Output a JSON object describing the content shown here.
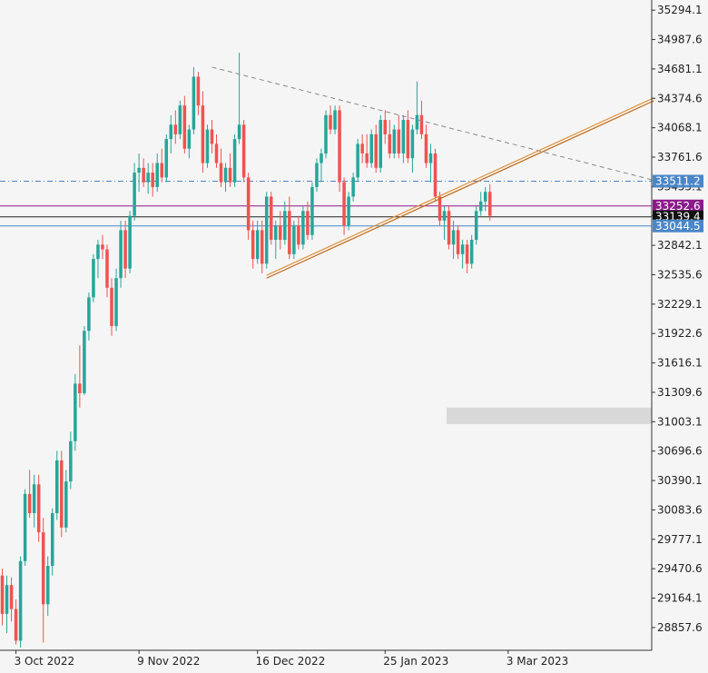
{
  "chart_data": {
    "type": "candlestick",
    "y_ticks": [
      35294.1,
      34987.6,
      34681.1,
      34374.6,
      34068.1,
      33761.6,
      33455.1,
      33148.6,
      32842.1,
      32535.6,
      32229.1,
      31922.6,
      31616.1,
      31309.6,
      31003.1,
      30696.6,
      30390.1,
      30083.6,
      29777.1,
      29470.6,
      29164.1,
      28857.6
    ],
    "x_ticks": [
      {
        "label": "3 Oct 2022",
        "bar": 3
      },
      {
        "label": "9 Nov 2022",
        "bar": 30
      },
      {
        "label": "16 Dec 2022",
        "bar": 56
      },
      {
        "label": "25 Jan 2023",
        "bar": 84
      },
      {
        "label": "3 Mar 2023",
        "bar": 111
      }
    ],
    "ylim": [
      28620,
      35400
    ],
    "bar_count": 143,
    "colors": {
      "up": "#26a69a",
      "down": "#ef5350",
      "background": "#f5f5f5"
    },
    "candles": [
      [
        29400,
        29470,
        28880,
        29000
      ],
      [
        29000,
        29400,
        28800,
        29300
      ],
      [
        29300,
        29380,
        28920,
        29050
      ],
      [
        29050,
        29150,
        28680,
        28720
      ],
      [
        28720,
        29600,
        28650,
        29550
      ],
      [
        29550,
        30300,
        29500,
        30250
      ],
      [
        30250,
        30500,
        30000,
        30050
      ],
      [
        30050,
        30450,
        29900,
        30350
      ],
      [
        30350,
        30450,
        29750,
        29850
      ],
      [
        29850,
        30000,
        28700,
        29100
      ],
      [
        29100,
        29600,
        28980,
        29500
      ],
      [
        29500,
        30100,
        29400,
        30050
      ],
      [
        30050,
        30700,
        29980,
        30600
      ],
      [
        30600,
        30700,
        29800,
        29900
      ],
      [
        29900,
        30500,
        29850,
        30380
      ],
      [
        30380,
        30900,
        30300,
        30800
      ],
      [
        30800,
        31500,
        30700,
        31400
      ],
      [
        31400,
        31800,
        31150,
        31300
      ],
      [
        31300,
        32000,
        31280,
        31950
      ],
      [
        31950,
        32350,
        31850,
        32300
      ],
      [
        32300,
        32750,
        32250,
        32700
      ],
      [
        32700,
        32900,
        32500,
        32850
      ],
      [
        32850,
        32950,
        32700,
        32800
      ],
      [
        32800,
        32850,
        32300,
        32400
      ],
      [
        32400,
        32500,
        31900,
        32000
      ],
      [
        32000,
        32600,
        31950,
        32500
      ],
      [
        32500,
        33100,
        32400,
        33000
      ],
      [
        33000,
        33100,
        32500,
        32600
      ],
      [
        32600,
        33200,
        32550,
        33150
      ],
      [
        33150,
        33700,
        33100,
        33600
      ],
      [
        33600,
        33800,
        33400,
        33650
      ],
      [
        33650,
        33750,
        33450,
        33500
      ],
      [
        33500,
        33700,
        33380,
        33600
      ],
      [
        33600,
        33700,
        33350,
        33450
      ],
      [
        33450,
        33800,
        33400,
        33700
      ],
      [
        33700,
        33850,
        33500,
        33550
      ],
      [
        33550,
        34000,
        33500,
        33950
      ],
      [
        33950,
        34200,
        33800,
        34100
      ],
      [
        34100,
        34250,
        33900,
        34000
      ],
      [
        34000,
        34350,
        33950,
        34300
      ],
      [
        34300,
        34400,
        33800,
        33850
      ],
      [
        33850,
        34100,
        33750,
        34050
      ],
      [
        34050,
        34700,
        34000,
        34600
      ],
      [
        34600,
        34650,
        34200,
        34300
      ],
      [
        34300,
        34450,
        33600,
        33700
      ],
      [
        33700,
        34100,
        33650,
        34050
      ],
      [
        34050,
        34150,
        33800,
        33900
      ],
      [
        33900,
        34000,
        33650,
        33700
      ],
      [
        33700,
        33850,
        33450,
        33500
      ],
      [
        33500,
        33700,
        33400,
        33650
      ],
      [
        33650,
        33800,
        33450,
        33500
      ],
      [
        33500,
        34000,
        33450,
        33950
      ],
      [
        33950,
        34850,
        33900,
        34100
      ],
      [
        34100,
        34150,
        33500,
        33550
      ],
      [
        33550,
        33600,
        32900,
        33000
      ],
      [
        33000,
        33100,
        32600,
        32700
      ],
      [
        32700,
        33100,
        32650,
        33000
      ],
      [
        33000,
        33100,
        32550,
        32650
      ],
      [
        32650,
        33400,
        32600,
        33350
      ],
      [
        33350,
        33400,
        32850,
        32900
      ],
      [
        32900,
        33100,
        32700,
        33050
      ],
      [
        33050,
        33200,
        32800,
        32900
      ],
      [
        32900,
        33300,
        32850,
        33200
      ],
      [
        33200,
        33350,
        32700,
        32750
      ],
      [
        32750,
        33100,
        32700,
        33050
      ],
      [
        33050,
        33150,
        32800,
        32850
      ],
      [
        32850,
        33250,
        32800,
        33200
      ],
      [
        33200,
        33300,
        32900,
        32950
      ],
      [
        32950,
        33500,
        32900,
        33450
      ],
      [
        33450,
        33750,
        33400,
        33700
      ],
      [
        33700,
        33850,
        33500,
        33800
      ],
      [
        33800,
        34250,
        33750,
        34200
      ],
      [
        34200,
        34300,
        34000,
        34050
      ],
      [
        34050,
        34300,
        34000,
        34250
      ],
      [
        34250,
        34300,
        33400,
        33500
      ],
      [
        33500,
        33550,
        32950,
        33050
      ],
      [
        33050,
        33400,
        33000,
        33350
      ],
      [
        33350,
        33600,
        33300,
        33550
      ],
      [
        33550,
        33950,
        33500,
        33900
      ],
      [
        33900,
        34000,
        33700,
        33800
      ],
      [
        33800,
        34000,
        33650,
        33700
      ],
      [
        33700,
        34050,
        33650,
        34000
      ],
      [
        34000,
        34100,
        33600,
        33650
      ],
      [
        33650,
        34200,
        33600,
        34150
      ],
      [
        34150,
        34250,
        33900,
        34000
      ],
      [
        34000,
        34150,
        33750,
        33800
      ],
      [
        33800,
        34100,
        33750,
        34050
      ],
      [
        34050,
        34200,
        33750,
        33800
      ],
      [
        33800,
        34200,
        33700,
        34150
      ],
      [
        34150,
        34250,
        33700,
        33750
      ],
      [
        33750,
        34100,
        33600,
        34050
      ],
      [
        34050,
        34550,
        34000,
        34200
      ],
      [
        34200,
        34350,
        33950,
        34000
      ],
      [
        34000,
        34100,
        33650,
        33700
      ],
      [
        33700,
        33900,
        33500,
        33800
      ],
      [
        33800,
        33850,
        33300,
        33350
      ],
      [
        33350,
        33400,
        33050,
        33100
      ],
      [
        33100,
        33250,
        32900,
        33200
      ],
      [
        33200,
        33250,
        32800,
        32850
      ],
      [
        32850,
        33100,
        32700,
        33000
      ],
      [
        33000,
        33050,
        32700,
        32750
      ],
      [
        32750,
        32900,
        32600,
        32850
      ],
      [
        32850,
        32900,
        32550,
        32650
      ],
      [
        32650,
        32950,
        32600,
        32900
      ],
      [
        32900,
        33250,
        32850,
        33200
      ],
      [
        33200,
        33400,
        33150,
        33300
      ],
      [
        33300,
        33450,
        33200,
        33400
      ],
      [
        33400,
        33480,
        33100,
        33150
      ]
    ],
    "series": [
      {
        "type": "dashed-trendline",
        "color": "#888888",
        "points": [
          [
            46,
            34700
          ],
          [
            143,
            33520
          ]
        ]
      },
      {
        "type": "channel-trendline",
        "color": "#e0923a",
        "points": [
          [
            58,
            32530
          ],
          [
            143,
            34380
          ]
        ]
      },
      {
        "type": "channel-trendline",
        "color": "#c06a1a",
        "points": [
          [
            58,
            32500
          ],
          [
            143,
            34350
          ]
        ]
      },
      {
        "type": "dashdot-hline",
        "color": "#4a86c8",
        "value": 33511.2
      },
      {
        "type": "hline",
        "color": "#8b1a8b",
        "value": 33252.6
      },
      {
        "type": "hline",
        "color": "#222222",
        "value": 33139.4
      },
      {
        "type": "hline",
        "color": "#4a86c8",
        "value": 33044.5
      }
    ],
    "price_labels": [
      {
        "text": "33511.2",
        "value": 33511.2,
        "bg": "#4a86c8"
      },
      {
        "text": "33252.6",
        "value": 33252.6,
        "bg": "#8b1a8b"
      },
      {
        "text": "33139.4",
        "value": 33139.4,
        "bg": "#111111"
      },
      {
        "text": "33044.5",
        "value": 33044.5,
        "bg": "#4a86c8"
      }
    ],
    "shaded_zone": {
      "from_bar": 98,
      "to_bar": 143,
      "y_low": 30980,
      "y_high": 31150,
      "color": "#d8d8d8"
    }
  }
}
